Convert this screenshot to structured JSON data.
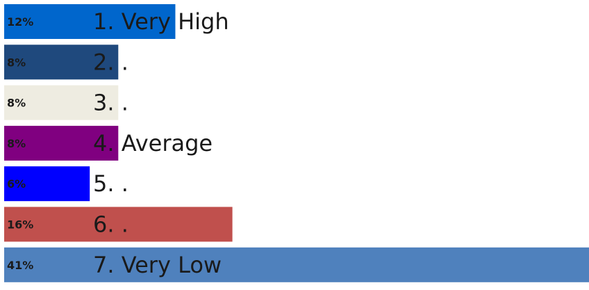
{
  "chart_data": {
    "type": "bar",
    "orientation": "horizontal",
    "title": "",
    "xlabel": "",
    "ylabel": "",
    "xlim": [
      0,
      41
    ],
    "grid": false,
    "legend": "none",
    "categories": [
      "1. Very High",
      "2. .",
      "3. .",
      "4. Average",
      "5. .",
      "6. .",
      "7. Very Low"
    ],
    "values": [
      12,
      8,
      8,
      8,
      6,
      16,
      41
    ],
    "value_labels": [
      "12%",
      "8%",
      "8%",
      "8%",
      "6%",
      "16%",
      "41%"
    ],
    "colors": [
      "#0066CC",
      "#1F497D",
      "#EEECE1",
      "#800080",
      "#0000FF",
      "#C0504D",
      "#4F81BD"
    ]
  }
}
